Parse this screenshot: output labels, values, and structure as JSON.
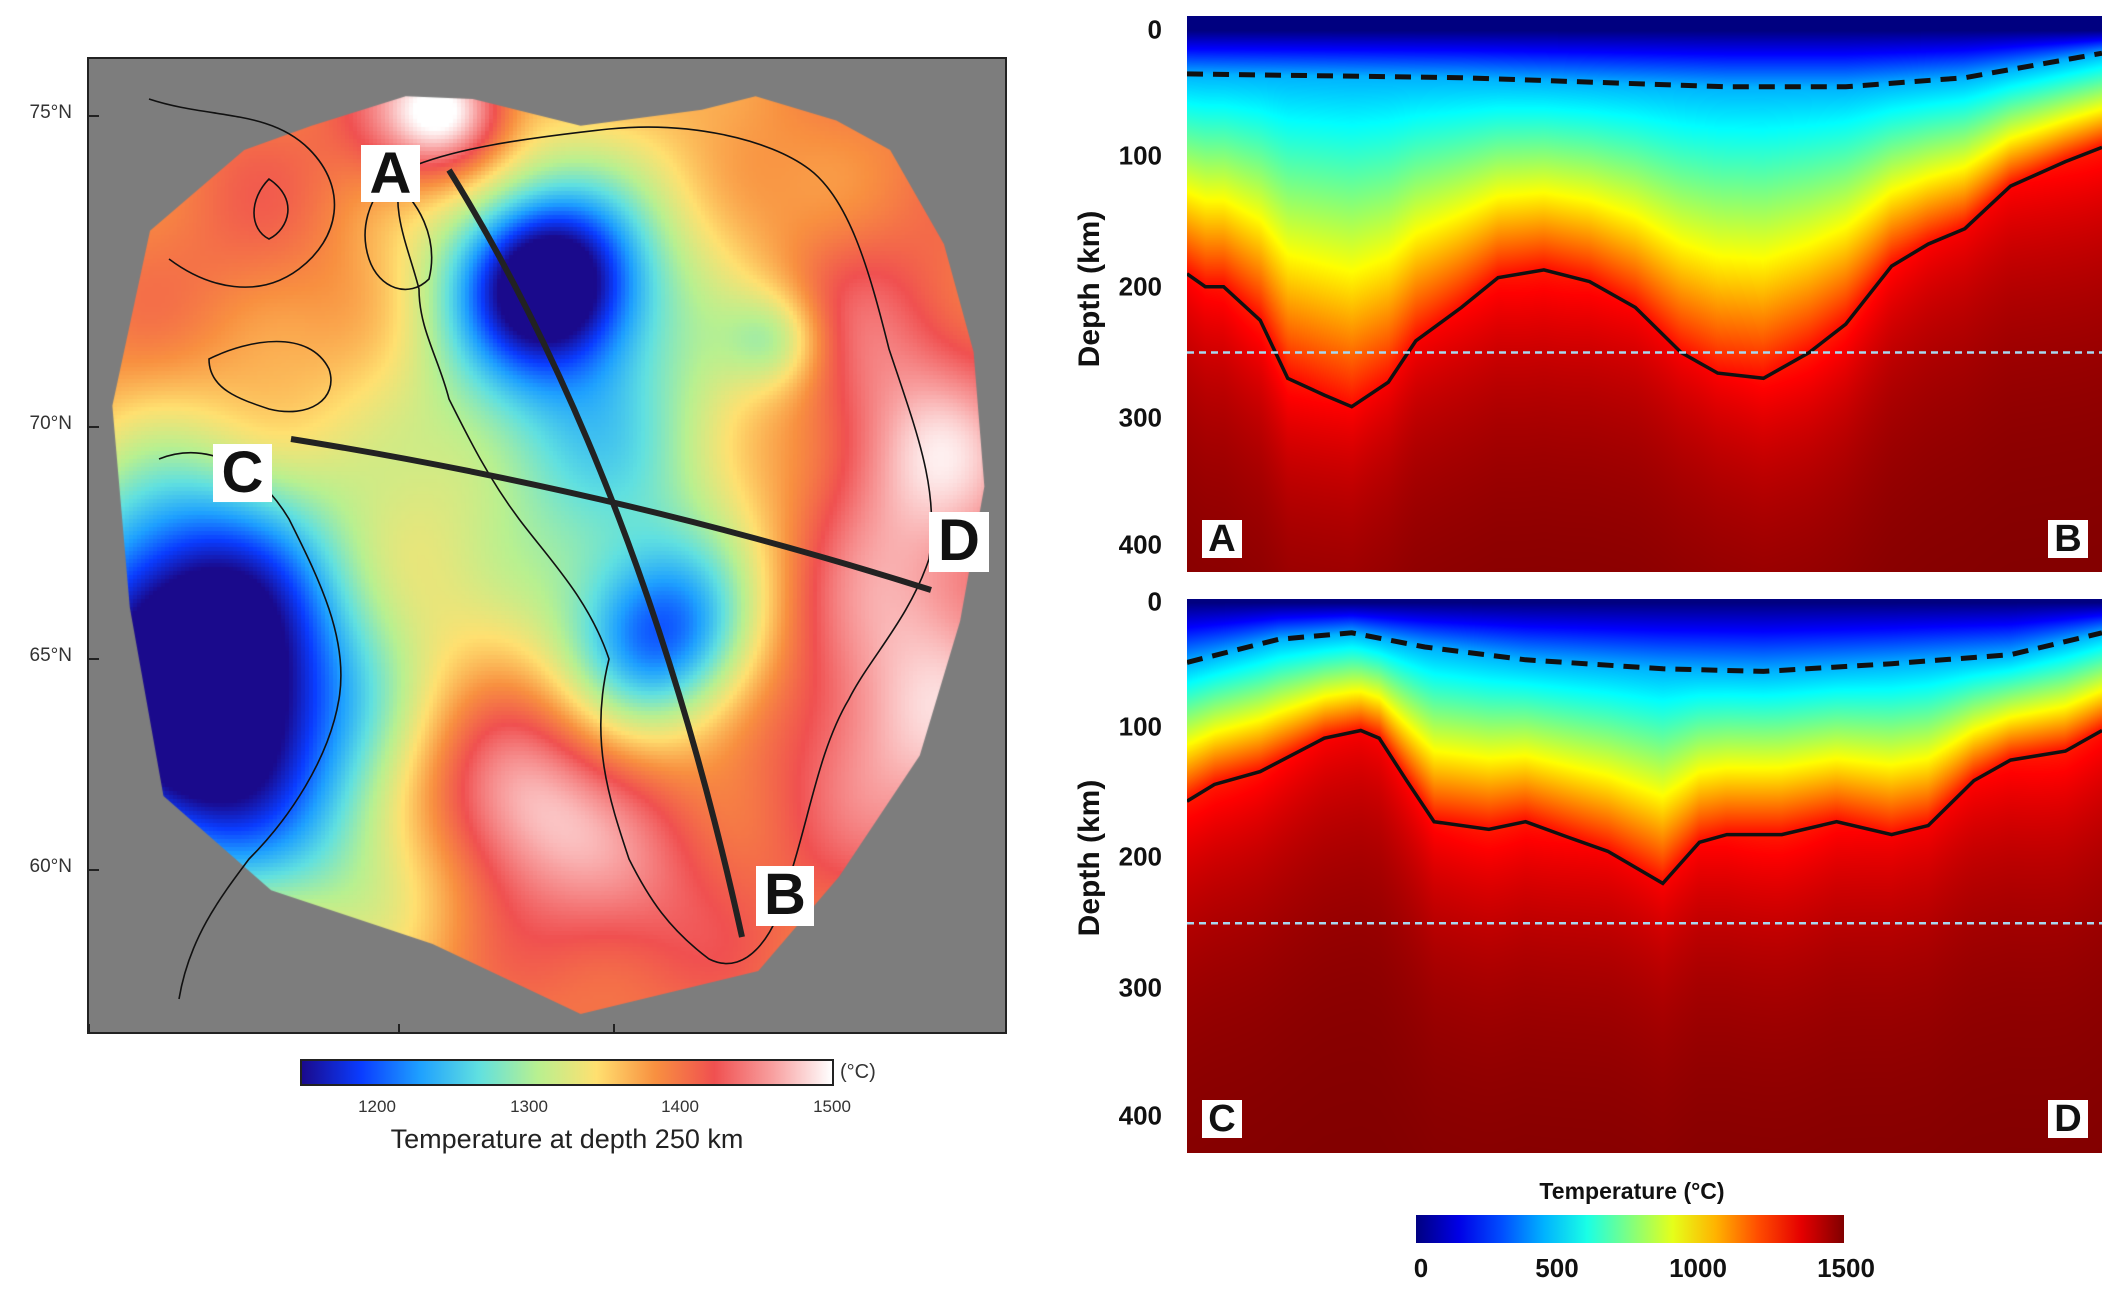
{
  "map": {
    "latitude_labels": [
      "75°N",
      "70°N",
      "65°N",
      "60°N"
    ],
    "profiles": [
      {
        "start": "A",
        "end": "B"
      },
      {
        "start": "C",
        "end": "D"
      }
    ],
    "colorbar": {
      "range": [
        1150,
        1500
      ],
      "ticks": [
        "1200",
        "1300",
        "1400",
        "1500"
      ],
      "unit": "(°C)",
      "title": "Temperature at depth 250 km",
      "stops": [
        "#1a0a8c",
        "#0a3cff",
        "#1ea0ff",
        "#60e0e0",
        "#b8f090",
        "#ffe070",
        "#f89040",
        "#f05050",
        "#f8a0a0",
        "#ffffff"
      ]
    },
    "background_color": "#7d7d7d"
  },
  "sections": [
    {
      "start": "A",
      "end": "B",
      "ylabel": "Depth (km)",
      "y_ticks": [
        "0",
        "100",
        "200",
        "300",
        "400"
      ],
      "reference_depth_km": 250,
      "solid_isoline_km": [
        [
          0,
          189
        ],
        [
          0.02,
          199
        ],
        [
          0.04,
          199
        ],
        [
          0.08,
          225
        ],
        [
          0.11,
          270
        ],
        [
          0.15,
          283
        ],
        [
          0.18,
          292
        ],
        [
          0.22,
          273
        ],
        [
          0.25,
          241
        ],
        [
          0.3,
          215
        ],
        [
          0.34,
          192
        ],
        [
          0.39,
          186
        ],
        [
          0.44,
          195
        ],
        [
          0.49,
          215
        ],
        [
          0.54,
          250
        ],
        [
          0.58,
          266
        ],
        [
          0.63,
          270
        ],
        [
          0.68,
          250
        ],
        [
          0.72,
          228
        ],
        [
          0.77,
          183
        ],
        [
          0.81,
          166
        ],
        [
          0.85,
          154
        ],
        [
          0.9,
          121
        ],
        [
          0.96,
          102
        ],
        [
          1,
          91
        ]
      ],
      "dashed_isoline_km": [
        [
          0,
          34
        ],
        [
          0.3,
          37
        ],
        [
          0.59,
          44
        ],
        [
          0.72,
          44
        ],
        [
          0.85,
          37
        ],
        [
          1,
          18
        ]
      ]
    },
    {
      "start": "C",
      "end": "D",
      "ylabel": "Depth (km)",
      "y_ticks": [
        "0",
        "100",
        "200",
        "300",
        "400"
      ],
      "reference_depth_km": 250,
      "solid_isoline_km": [
        [
          0,
          155
        ],
        [
          0.03,
          142
        ],
        [
          0.08,
          132
        ],
        [
          0.15,
          106
        ],
        [
          0.19,
          100
        ],
        [
          0.21,
          106
        ],
        [
          0.24,
          139
        ],
        [
          0.27,
          171
        ],
        [
          0.33,
          177
        ],
        [
          0.37,
          171
        ],
        [
          0.42,
          184
        ],
        [
          0.46,
          194
        ],
        [
          0.52,
          219
        ],
        [
          0.56,
          187
        ],
        [
          0.59,
          181
        ],
        [
          0.65,
          181
        ],
        [
          0.71,
          171
        ],
        [
          0.77,
          181
        ],
        [
          0.81,
          174
        ],
        [
          0.86,
          139
        ],
        [
          0.9,
          123
        ],
        [
          0.96,
          116
        ],
        [
          1,
          100
        ]
      ],
      "dashed_isoline_km": [
        [
          0,
          47
        ],
        [
          0.1,
          29
        ],
        [
          0.18,
          24
        ],
        [
          0.26,
          35
        ],
        [
          0.37,
          45
        ],
        [
          0.52,
          52
        ],
        [
          0.63,
          54
        ],
        [
          0.77,
          48
        ],
        [
          0.9,
          41
        ],
        [
          1,
          24
        ]
      ]
    }
  ],
  "colorbar": {
    "title": "Temperature (°C)",
    "range": [
      0,
      1500
    ],
    "ticks": [
      "0",
      "500",
      "1000",
      "1500"
    ],
    "colormap": "jet"
  }
}
